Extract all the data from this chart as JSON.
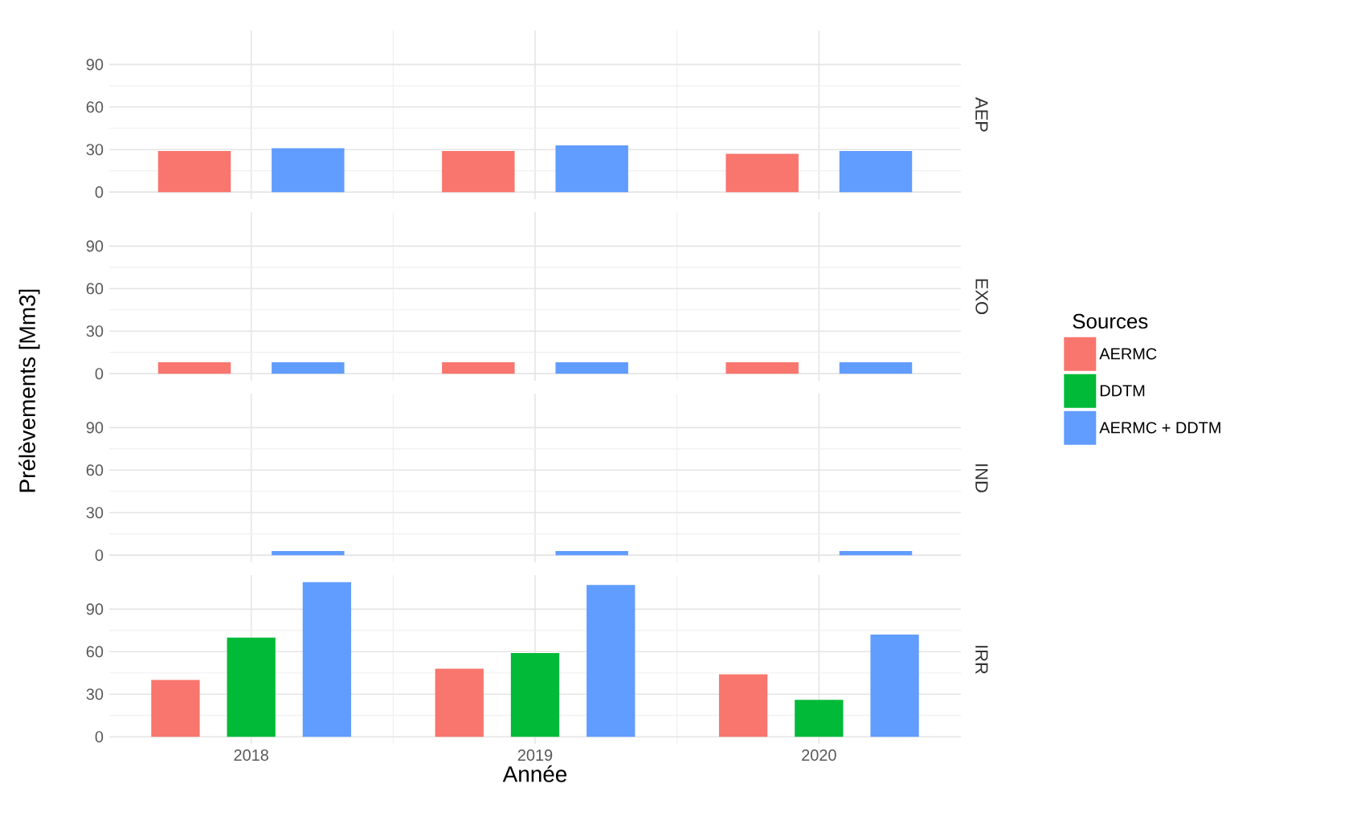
{
  "chart_data": [
    {
      "type": "bar",
      "annotations": [
        "AEP"
      ],
      "categories": [
        "2018",
        "2019",
        "2020"
      ],
      "ylim": [
        -5,
        114
      ],
      "yticks": [
        0,
        30,
        60,
        90
      ],
      "grid": true,
      "tick_labels": "y",
      "series": [
        {
          "color": "#f8766d",
          "values": [
            29,
            29,
            27
          ]
        },
        {
          "color": "#619cff",
          "values": [
            31,
            33,
            29
          ]
        }
      ]
    },
    {
      "type": "bar",
      "annotations": [
        "EXO"
      ],
      "ylabel": "Prélèvements [Mm3]",
      "categories": [
        "2018",
        "2019",
        "2020"
      ],
      "ylim": [
        -5,
        114
      ],
      "yticks": [
        0,
        30,
        60,
        90
      ],
      "grid": true,
      "tick_labels": "y",
      "series": [
        {
          "color": "#f8766d",
          "values": [
            8,
            8,
            8
          ]
        },
        {
          "color": "#619cff",
          "values": [
            8,
            8,
            8
          ]
        }
      ]
    },
    {
      "type": "bar",
      "annotations": [
        "IND"
      ],
      "categories": [
        "2018",
        "2019",
        "2020"
      ],
      "ylim": [
        -5,
        114
      ],
      "yticks": [
        0,
        30,
        60,
        90
      ],
      "grid": true,
      "tick_labels": "y",
      "series": [
        {
          "color": "#f8766d",
          "values": [
            0,
            0,
            0
          ]
        },
        {
          "color": "#619cff",
          "values": [
            3,
            3,
            3
          ]
        }
      ]
    },
    {
      "type": "bar",
      "annotations": [
        "IRR"
      ],
      "xlabel": "Année",
      "legend_title": "Sources",
      "legend": "right",
      "categories": [
        "2018",
        "2019",
        "2020"
      ],
      "ylim": [
        -5,
        114
      ],
      "yticks": [
        0,
        30,
        60,
        90
      ],
      "grid": true,
      "series": [
        {
          "name": "AERMC",
          "color": "#f8766d",
          "values": [
            40,
            48,
            44
          ]
        },
        {
          "name": "DDTM",
          "color": "#00ba38",
          "values": [
            70,
            59,
            26
          ]
        },
        {
          "name": "AERMC + DDTM",
          "color": "#619cff",
          "values": [
            109,
            107,
            72
          ]
        }
      ]
    }
  ]
}
